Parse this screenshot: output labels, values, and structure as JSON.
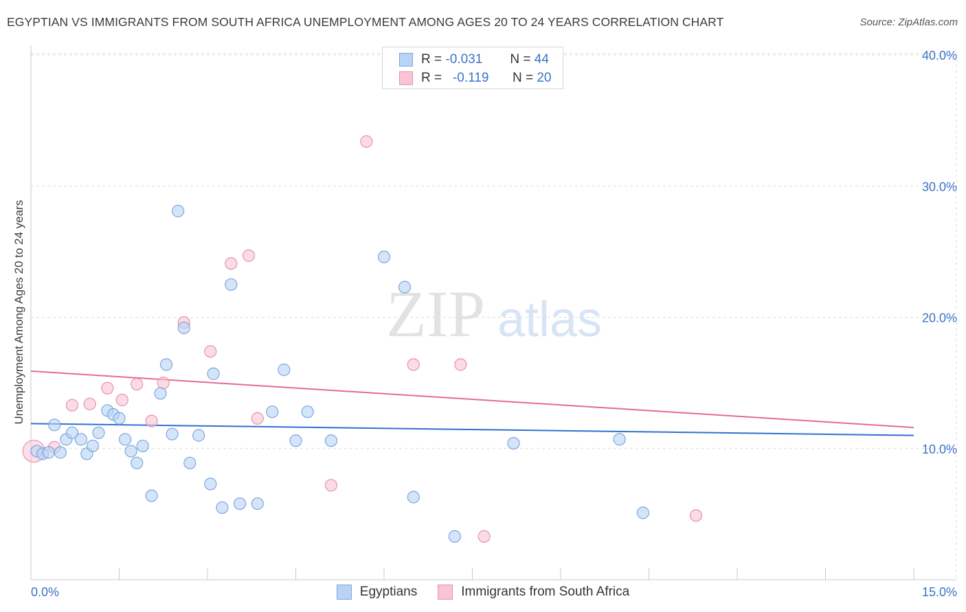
{
  "header": {
    "title": "EGYPTIAN VS IMMIGRANTS FROM SOUTH AFRICA UNEMPLOYMENT AMONG AGES 20 TO 24 YEARS CORRELATION CHART",
    "source": "Source: ZipAtlas.com"
  },
  "watermark": {
    "zip": "ZIP",
    "atlas": "atlas"
  },
  "legend_top": {
    "series1": {
      "r_label": "R =",
      "r_value": "-0.031",
      "n_label": "N =",
      "n_value": "44"
    },
    "series2": {
      "r_label": "R =",
      "r_value": "-0.119",
      "n_label": "N =",
      "n_value": "20"
    }
  },
  "legend_bottom": {
    "series1": "Egyptians",
    "series2": "Immigrants from South Africa"
  },
  "colors": {
    "blue_fill": "#b9d3f5",
    "blue_stroke": "#7aa6e0",
    "blue_line": "#2f6fcf",
    "pink_fill": "#f9c4d5",
    "pink_stroke": "#e890ad",
    "pink_line": "#e46b94",
    "tick_label": "#3a73c8",
    "grid": "#dcdcdc"
  },
  "chart_data": {
    "type": "scatter",
    "title": "EGYPTIAN VS IMMIGRANTS FROM SOUTH AFRICA UNEMPLOYMENT AMONG AGES 20 TO 24 YEARS CORRELATION CHART",
    "xlabel": "",
    "ylabel": "Unemployment Among Ages 20 to 24 years",
    "xlim": [
      0,
      15
    ],
    "ylim": [
      0,
      40
    ],
    "x_tick_labels": [
      "0.0%",
      "15.0%"
    ],
    "y_ticks": [
      10,
      20,
      30,
      40
    ],
    "y_tick_labels": [
      "10.0%",
      "20.0%",
      "30.0%",
      "40.0%"
    ],
    "grid": true,
    "legend_position": "top-center",
    "series": [
      {
        "name": "Egyptians",
        "color": "#b9d3f5",
        "r": -0.031,
        "n": 44,
        "trend": {
          "x": [
            0,
            15
          ],
          "y": [
            11.9,
            11.0
          ]
        },
        "points": [
          {
            "x": 0.1,
            "y": 9.8
          },
          {
            "x": 0.2,
            "y": 9.6
          },
          {
            "x": 0.3,
            "y": 9.7
          },
          {
            "x": 0.4,
            "y": 11.8
          },
          {
            "x": 0.5,
            "y": 9.7
          },
          {
            "x": 0.6,
            "y": 10.7
          },
          {
            "x": 0.7,
            "y": 11.2
          },
          {
            "x": 0.85,
            "y": 10.7
          },
          {
            "x": 0.95,
            "y": 9.6
          },
          {
            "x": 1.05,
            "y": 10.2
          },
          {
            "x": 1.15,
            "y": 11.2
          },
          {
            "x": 1.3,
            "y": 12.9
          },
          {
            "x": 1.4,
            "y": 12.6
          },
          {
            "x": 1.5,
            "y": 12.3
          },
          {
            "x": 1.6,
            "y": 10.7
          },
          {
            "x": 1.7,
            "y": 9.8
          },
          {
            "x": 1.8,
            "y": 8.9
          },
          {
            "x": 1.9,
            "y": 10.2
          },
          {
            "x": 2.05,
            "y": 6.4
          },
          {
            "x": 2.2,
            "y": 14.2
          },
          {
            "x": 2.3,
            "y": 16.4
          },
          {
            "x": 2.4,
            "y": 11.1
          },
          {
            "x": 2.5,
            "y": 28.1
          },
          {
            "x": 2.6,
            "y": 19.2
          },
          {
            "x": 2.7,
            "y": 8.9
          },
          {
            "x": 2.85,
            "y": 11.0
          },
          {
            "x": 3.05,
            "y": 7.3
          },
          {
            "x": 3.1,
            "y": 15.7
          },
          {
            "x": 3.25,
            "y": 5.5
          },
          {
            "x": 3.4,
            "y": 22.5
          },
          {
            "x": 3.55,
            "y": 5.8
          },
          {
            "x": 3.85,
            "y": 5.8
          },
          {
            "x": 4.1,
            "y": 12.8
          },
          {
            "x": 4.3,
            "y": 16.0
          },
          {
            "x": 4.5,
            "y": 10.6
          },
          {
            "x": 4.7,
            "y": 12.8
          },
          {
            "x": 5.1,
            "y": 10.6
          },
          {
            "x": 6.0,
            "y": 24.6
          },
          {
            "x": 6.35,
            "y": 22.3
          },
          {
            "x": 6.5,
            "y": 6.3
          },
          {
            "x": 7.2,
            "y": 3.3
          },
          {
            "x": 8.2,
            "y": 10.4
          },
          {
            "x": 10.0,
            "y": 10.7
          },
          {
            "x": 10.4,
            "y": 5.1
          }
        ]
      },
      {
        "name": "Immigrants from South Africa",
        "color": "#f9c4d5",
        "r": -0.119,
        "n": 20,
        "trend": {
          "x": [
            0,
            15
          ],
          "y": [
            15.9,
            11.6
          ]
        },
        "points": [
          {
            "x": 0.05,
            "y": 9.8
          },
          {
            "x": 0.4,
            "y": 10.1
          },
          {
            "x": 0.7,
            "y": 13.3
          },
          {
            "x": 1.0,
            "y": 13.4
          },
          {
            "x": 1.3,
            "y": 14.6
          },
          {
            "x": 1.55,
            "y": 13.7
          },
          {
            "x": 1.8,
            "y": 14.9
          },
          {
            "x": 2.05,
            "y": 12.1
          },
          {
            "x": 2.25,
            "y": 15.0
          },
          {
            "x": 2.6,
            "y": 19.6
          },
          {
            "x": 3.05,
            "y": 17.4
          },
          {
            "x": 3.4,
            "y": 24.1
          },
          {
            "x": 3.7,
            "y": 24.7
          },
          {
            "x": 3.85,
            "y": 12.3
          },
          {
            "x": 5.1,
            "y": 7.2
          },
          {
            "x": 5.7,
            "y": 33.4
          },
          {
            "x": 6.5,
            "y": 16.4
          },
          {
            "x": 7.3,
            "y": 16.4
          },
          {
            "x": 7.7,
            "y": 3.3
          },
          {
            "x": 11.3,
            "y": 4.9
          }
        ]
      }
    ]
  }
}
